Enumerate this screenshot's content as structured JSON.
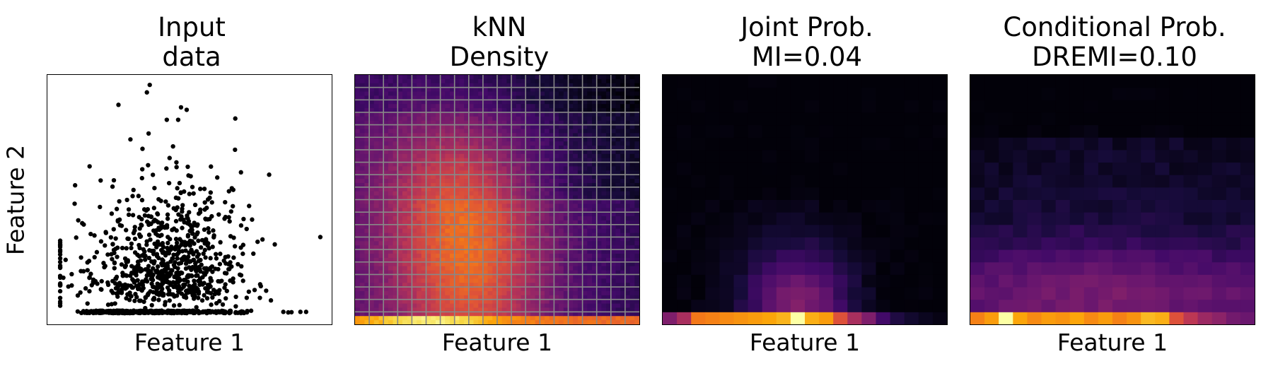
{
  "chart_data": [
    {
      "type": "scatter",
      "title": [
        "Input",
        "data"
      ],
      "xlabel": "Feature 1",
      "ylabel": "Feature 2",
      "ticks": "none",
      "marker_color": "#000000",
      "description": "Zero-inflated 2D scatter: many points on the floor y≈0, a cloud concentrated around x 0.3–0.55"
    },
    {
      "type": "heatmap",
      "title": [
        "kNN",
        "Density"
      ],
      "xlabel": "Feature 1",
      "colormap": "inferno",
      "grid": true,
      "grid_color": "#888888",
      "grid_cells": 20
    },
    {
      "type": "heatmap",
      "title": [
        "Joint Prob.",
        "MI=0.04"
      ],
      "xlabel": "Feature 1",
      "colormap": "inferno",
      "bins": 20,
      "bottom_row": [
        0.35,
        0.45,
        0.7,
        0.72,
        0.74,
        0.76,
        0.78,
        0.8,
        0.83,
        1.0,
        0.82,
        0.78,
        0.6,
        0.45,
        0.35,
        0.2,
        0.12,
        0.08,
        0.05,
        0.03
      ]
    },
    {
      "type": "heatmap",
      "title": [
        "Conditional Prob.",
        "DREMI=0.10"
      ],
      "xlabel": "Feature 1",
      "colormap": "inferno",
      "bins": 20,
      "bottom_row": [
        0.72,
        0.78,
        1.0,
        0.8,
        0.74,
        0.78,
        0.76,
        0.8,
        0.74,
        0.78,
        0.72,
        0.76,
        0.84,
        0.82,
        0.6,
        0.5,
        0.42,
        0.38,
        0.32,
        0.3
      ]
    }
  ]
}
